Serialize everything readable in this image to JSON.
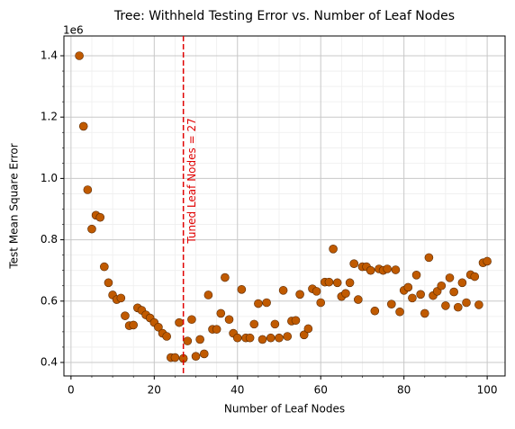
{
  "chart_data": {
    "type": "scatter",
    "title": "Tree: Withheld Testing Error vs. Number of Leaf Nodes",
    "xlabel": "Number of Leaf Nodes",
    "ylabel": "Test Mean Square Error",
    "offset_text": "1e6",
    "color": "#c05a00",
    "edgecolor": "#5a2a00",
    "x": [
      2,
      3,
      4,
      5,
      6,
      7,
      8,
      9,
      10,
      11,
      12,
      13,
      14,
      15,
      16,
      17,
      18,
      19,
      20,
      21,
      22,
      23,
      24,
      25,
      26,
      27,
      28,
      29,
      30,
      31,
      32,
      33,
      34,
      35,
      36,
      37,
      38,
      39,
      40,
      41,
      42,
      43,
      44,
      45,
      46,
      47,
      48,
      49,
      50,
      51,
      52,
      53,
      54,
      55,
      56,
      57,
      58,
      59,
      60,
      61,
      62,
      63,
      64,
      65,
      66,
      67,
      68,
      69,
      70,
      71,
      72,
      73,
      74,
      75,
      76,
      77,
      78,
      79,
      80,
      81,
      82,
      83,
      84,
      85,
      86,
      87,
      88,
      89,
      90,
      91,
      92,
      93,
      94,
      95,
      96,
      97,
      98,
      99,
      100
    ],
    "values": [
      1400000,
      1170000,
      963000,
      835000,
      880000,
      873000,
      712000,
      660000,
      620000,
      605000,
      610000,
      552000,
      520000,
      522000,
      578000,
      570000,
      555000,
      545000,
      530000,
      515000,
      495000,
      485000,
      416000,
      416000,
      530000,
      413000,
      470000,
      540000,
      420000,
      475000,
      428000,
      620000,
      508000,
      508000,
      560000,
      677000,
      540000,
      495000,
      480000,
      638000,
      480000,
      480000,
      525000,
      592000,
      475000,
      595000,
      480000,
      525000,
      480000,
      635000,
      485000,
      535000,
      537000,
      622000,
      490000,
      510000,
      640000,
      632000,
      595000,
      662000,
      662000,
      770000,
      660000,
      615000,
      625000,
      660000,
      722000,
      605000,
      712000,
      712000,
      700000,
      568000,
      705000,
      700000,
      705000,
      590000,
      702000,
      565000,
      635000,
      645000,
      610000,
      685000,
      622000,
      560000,
      742000,
      618000,
      632000,
      650000,
      585000,
      676000,
      630000,
      580000,
      660000,
      595000,
      686000,
      680000,
      588000,
      725000,
      730000
    ],
    "xlim": [
      -1.7,
      104.3
    ],
    "ylim": [
      356000,
      1464500
    ],
    "xticks": [
      0,
      20,
      40,
      60,
      80,
      100
    ],
    "yticks": [
      {
        "value": 400000,
        "label": "0.4"
      },
      {
        "value": 600000,
        "label": "0.6"
      },
      {
        "value": 800000,
        "label": "0.8"
      },
      {
        "value": 1000000,
        "label": "1.0"
      },
      {
        "value": 1200000,
        "label": "1.2"
      },
      {
        "value": 1400000,
        "label": "1.4"
      }
    ],
    "xminorticks": [
      5,
      10,
      15,
      25,
      30,
      35,
      45,
      50,
      55,
      65,
      70,
      75,
      85,
      90,
      95
    ],
    "yminorticks": [
      450000,
      500000,
      550000,
      650000,
      700000,
      750000,
      850000,
      900000,
      950000,
      1050000,
      1100000,
      1150000,
      1250000,
      1300000,
      1350000
    ],
    "grid": true,
    "minor_grid": true,
    "vline": {
      "x": 27,
      "color": "#e00000",
      "label": "Tuned Leaf Nodes = 27"
    }
  }
}
